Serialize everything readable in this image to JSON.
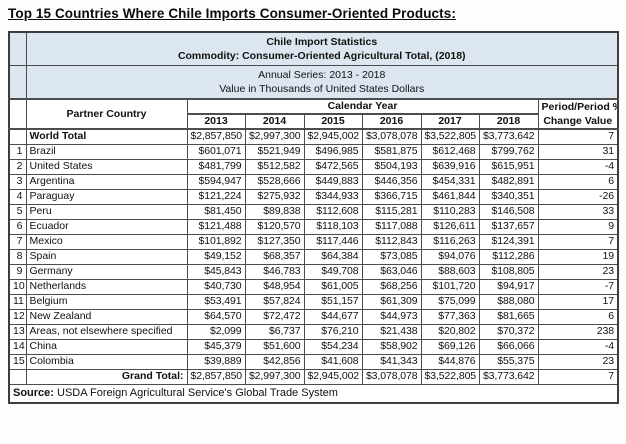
{
  "page_title": "Top 15 Countries Where Chile Imports Consumer-Oriented Products:",
  "table": {
    "title_block": {
      "line1": "Chile Import Statistics",
      "line2": "Commodity: Consumer-Oriented Agricultural Total, (2018)",
      "line3": "Annual Series: 2013 - 2018",
      "line4": "Value in Thousands of United States Dollars"
    },
    "header": {
      "partner_country": "Partner Country",
      "calendar_year": "Calendar Year",
      "years": [
        "2013",
        "2014",
        "2015",
        "2016",
        "2017",
        "2018"
      ],
      "period_line1": "Period/Period %",
      "period_line2": "Change Value"
    },
    "world_total": {
      "rank": "",
      "label": "World Total",
      "values": [
        "$2,857,850",
        "$2,997,300",
        "$2,945,002",
        "$3,078,078",
        "$3,522,805",
        "$3,773,642"
      ],
      "change": "7"
    },
    "rows": [
      {
        "rank": "1",
        "label": "Brazil",
        "values": [
          "$601,071",
          "$521,949",
          "$496,985",
          "$581,875",
          "$612,468",
          "$799,762"
        ],
        "change": "31"
      },
      {
        "rank": "2",
        "label": "United States",
        "values": [
          "$481,799",
          "$512,582",
          "$472,565",
          "$504,193",
          "$639,916",
          "$615,951"
        ],
        "change": "-4"
      },
      {
        "rank": "3",
        "label": "Argentina",
        "values": [
          "$594,947",
          "$528,666",
          "$449,883",
          "$446,356",
          "$454,331",
          "$482,891"
        ],
        "change": "6"
      },
      {
        "rank": "4",
        "label": "Paraguay",
        "values": [
          "$121,224",
          "$275,932",
          "$344,933",
          "$366,715",
          "$461,844",
          "$340,351"
        ],
        "change": "-26"
      },
      {
        "rank": "5",
        "label": "Peru",
        "values": [
          "$81,450",
          "$89,838",
          "$112,608",
          "$115,281",
          "$110,283",
          "$146,508"
        ],
        "change": "33"
      },
      {
        "rank": "6",
        "label": "Ecuador",
        "values": [
          "$121,488",
          "$120,570",
          "$118,103",
          "$117,088",
          "$126,611",
          "$137,657"
        ],
        "change": "9"
      },
      {
        "rank": "7",
        "label": "Mexico",
        "values": [
          "$101,892",
          "$127,350",
          "$117,446",
          "$112,843",
          "$116,263",
          "$124,391"
        ],
        "change": "7"
      },
      {
        "rank": "8",
        "label": "Spain",
        "values": [
          "$49,152",
          "$68,357",
          "$64,384",
          "$73,085",
          "$94,076",
          "$112,286"
        ],
        "change": "19"
      },
      {
        "rank": "9",
        "label": "Germany",
        "values": [
          "$45,843",
          "$46,783",
          "$49,708",
          "$63,046",
          "$88,603",
          "$108,805"
        ],
        "change": "23"
      },
      {
        "rank": "10",
        "label": "Netherlands",
        "values": [
          "$40,730",
          "$48,954",
          "$61,005",
          "$68,256",
          "$101,720",
          "$94,917"
        ],
        "change": "-7"
      },
      {
        "rank": "11",
        "label": "Belgium",
        "values": [
          "$53,491",
          "$57,824",
          "$51,157",
          "$61,309",
          "$75,099",
          "$88,080"
        ],
        "change": "17"
      },
      {
        "rank": "12",
        "label": "New Zealand",
        "values": [
          "$64,570",
          "$72,472",
          "$44,677",
          "$44,973",
          "$77,363",
          "$81,665"
        ],
        "change": "6"
      },
      {
        "rank": "13",
        "label": "Areas, not elsewhere specified",
        "values": [
          "$2,099",
          "$6,737",
          "$76,210",
          "$21,438",
          "$20,802",
          "$70,372"
        ],
        "change": "238"
      },
      {
        "rank": "14",
        "label": "China",
        "values": [
          "$45,379",
          "$51,600",
          "$54,234",
          "$58,902",
          "$69,126",
          "$66,066"
        ],
        "change": "-4"
      },
      {
        "rank": "15",
        "label": "Colombia",
        "values": [
          "$39,889",
          "$42,856",
          "$41,608",
          "$41,343",
          "$44,876",
          "$55,375"
        ],
        "change": "23"
      }
    ],
    "grand_total": {
      "rank": "",
      "label": "Grand Total:",
      "values": [
        "$2,857,850",
        "$2,997,300",
        "$2,945,002",
        "$3,078,078",
        "$3,522,805",
        "$3,773,642"
      ],
      "change": "7"
    },
    "source_label": "Source:",
    "source_text": " USDA Foreign Agricultural Service's Global Trade System"
  },
  "colors": {
    "band_blue": "#dce6f1",
    "header_gray": "#e7e7e7",
    "border": "#4d4d4d",
    "text": "#111111"
  },
  "chart_data": {
    "type": "table",
    "title": "Chile Import Statistics",
    "subtitle": "Commodity: Consumer-Oriented Agricultural Total, (2018)",
    "series_note": "Annual Series: 2013 - 2018",
    "units": "Value in Thousands of United States Dollars",
    "columns": [
      "Partner Country",
      "2013",
      "2014",
      "2015",
      "2016",
      "2017",
      "2018",
      "Period/Period % Change Value"
    ],
    "rows": [
      [
        "World Total",
        2857850,
        2997300,
        2945002,
        3078078,
        3522805,
        3773642,
        7
      ],
      [
        "Brazil",
        601071,
        521949,
        496985,
        581875,
        612468,
        799762,
        31
      ],
      [
        "United States",
        481799,
        512582,
        472565,
        504193,
        639916,
        615951,
        -4
      ],
      [
        "Argentina",
        594947,
        528666,
        449883,
        446356,
        454331,
        482891,
        6
      ],
      [
        "Paraguay",
        121224,
        275932,
        344933,
        366715,
        461844,
        340351,
        -26
      ],
      [
        "Peru",
        81450,
        89838,
        112608,
        115281,
        110283,
        146508,
        33
      ],
      [
        "Ecuador",
        121488,
        120570,
        118103,
        117088,
        126611,
        137657,
        9
      ],
      [
        "Mexico",
        101892,
        127350,
        117446,
        112843,
        116263,
        124391,
        7
      ],
      [
        "Spain",
        49152,
        68357,
        64384,
        73085,
        94076,
        112286,
        19
      ],
      [
        "Germany",
        45843,
        46783,
        49708,
        63046,
        88603,
        108805,
        23
      ],
      [
        "Netherlands",
        40730,
        48954,
        61005,
        68256,
        101720,
        94917,
        -7
      ],
      [
        "Belgium",
        53491,
        57824,
        51157,
        61309,
        75099,
        88080,
        17
      ],
      [
        "New Zealand",
        64570,
        72472,
        44677,
        44973,
        77363,
        81665,
        6
      ],
      [
        "Areas, not elsewhere specified",
        2099,
        6737,
        76210,
        21438,
        20802,
        70372,
        238
      ],
      [
        "China",
        45379,
        51600,
        54234,
        58902,
        69126,
        66066,
        -4
      ],
      [
        "Colombia",
        39889,
        42856,
        41608,
        41343,
        44876,
        55375,
        23
      ],
      [
        "Grand Total:",
        2857850,
        2997300,
        2945002,
        3078078,
        3522805,
        3773642,
        7
      ]
    ]
  }
}
